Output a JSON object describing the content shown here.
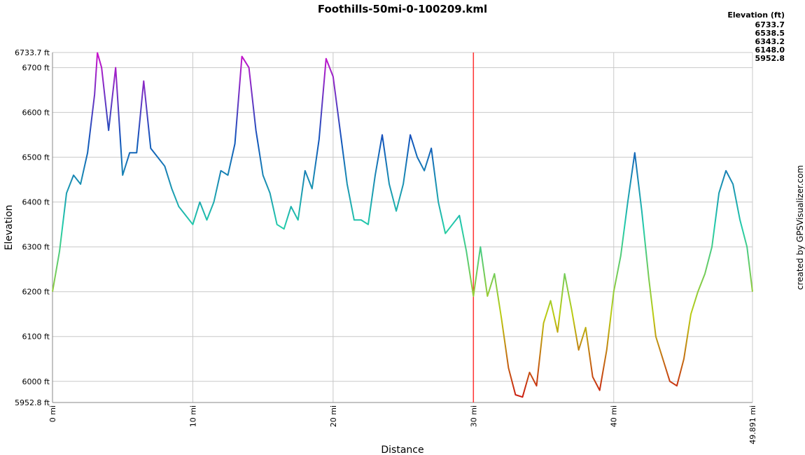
{
  "chart_data": {
    "type": "line",
    "title": "Foothills-50mi-0-100209.kml",
    "xlabel": "Distance",
    "ylabel": "Elevation",
    "credit": "created by GPSVisualizer.com",
    "xlim": [
      0,
      49.891
    ],
    "ylim": [
      5952.8,
      6733.7
    ],
    "xticks": [
      {
        "value": 0,
        "label": "0 mi"
      },
      {
        "value": 10,
        "label": "10 mi"
      },
      {
        "value": 20,
        "label": "20 mi"
      },
      {
        "value": 30,
        "label": "30 mi"
      },
      {
        "value": 40,
        "label": "40 mi"
      },
      {
        "value": 49.891,
        "label": "49.891 mi"
      }
    ],
    "yticks": [
      {
        "value": 5952.8,
        "label": "5952.8 ft"
      },
      {
        "value": 6000,
        "label": "6000 ft"
      },
      {
        "value": 6100,
        "label": "6100 ft"
      },
      {
        "value": 6200,
        "label": "6200 ft"
      },
      {
        "value": 6300,
        "label": "6300 ft"
      },
      {
        "value": 6400,
        "label": "6400 ft"
      },
      {
        "value": 6500,
        "label": "6500 ft"
      },
      {
        "value": 6600,
        "label": "6600 ft"
      },
      {
        "value": 6700,
        "label": "6700 ft"
      },
      {
        "value": 6733.7,
        "label": "6733.7 ft"
      }
    ],
    "grid": true,
    "marker_line": {
      "x": 30,
      "color": "#ff3333"
    },
    "color_scale": {
      "title": "Elevation (ft)",
      "stops": [
        6733.7,
        6538.5,
        6343.2,
        {
          "value": 6148,
          "label": "6148.0"
        },
        5952.8
      ],
      "colors": [
        "#cc11cc",
        "#1155bb",
        "#22ccaa",
        "#bbcc11",
        "#cc1111"
      ]
    },
    "x": [
      0,
      0.5,
      1,
      1.5,
      2,
      2.5,
      3,
      3.2,
      3.5,
      4,
      4.5,
      5,
      5.5,
      6,
      6.5,
      7,
      7.5,
      8,
      8.5,
      9,
      9.5,
      10,
      10.5,
      11,
      11.5,
      12,
      12.5,
      13,
      13.5,
      14,
      14.5,
      15,
      15.5,
      16,
      16.5,
      17,
      17.5,
      18,
      18.5,
      19,
      19.5,
      20,
      20.5,
      21,
      21.5,
      22,
      22.5,
      23,
      23.5,
      24,
      24.5,
      25,
      25.5,
      26,
      26.5,
      27,
      27.5,
      28,
      28.5,
      29,
      29.5,
      30,
      30.5,
      31,
      31.5,
      32,
      32.5,
      33,
      33.5,
      34,
      34.5,
      35,
      35.5,
      36,
      36.5,
      37,
      37.5,
      38,
      38.5,
      39,
      39.5,
      40,
      40.5,
      41,
      41.5,
      42,
      42.5,
      43,
      43.5,
      44,
      44.5,
      45,
      45.5,
      46,
      46.5,
      47,
      47.5,
      48,
      48.5,
      49,
      49.5,
      49.891
    ],
    "series": [
      {
        "name": "Elevation",
        "values": [
          6200,
          6290,
          6420,
          6460,
          6440,
          6510,
          6640,
          6733,
          6700,
          6560,
          6700,
          6460,
          6510,
          6510,
          6670,
          6520,
          6500,
          6480,
          6430,
          6390,
          6370,
          6350,
          6400,
          6360,
          6400,
          6470,
          6460,
          6530,
          6725,
          6700,
          6560,
          6460,
          6420,
          6350,
          6340,
          6390,
          6360,
          6470,
          6430,
          6540,
          6720,
          6680,
          6560,
          6440,
          6360,
          6360,
          6350,
          6460,
          6550,
          6440,
          6380,
          6440,
          6550,
          6500,
          6470,
          6520,
          6400,
          6330,
          6350,
          6370,
          6290,
          6190,
          6300,
          6190,
          6240,
          6140,
          6030,
          5970,
          5965,
          6020,
          5990,
          6130,
          6180,
          6110,
          6240,
          6160,
          6070,
          6120,
          6010,
          5980,
          6070,
          6200,
          6280,
          6400,
          6510,
          6380,
          6230,
          6100,
          6050,
          6000,
          5990,
          6050,
          6150,
          6200,
          6240,
          6300,
          6420,
          6470,
          6440,
          6360,
          6300,
          6200
        ]
      }
    ]
  }
}
